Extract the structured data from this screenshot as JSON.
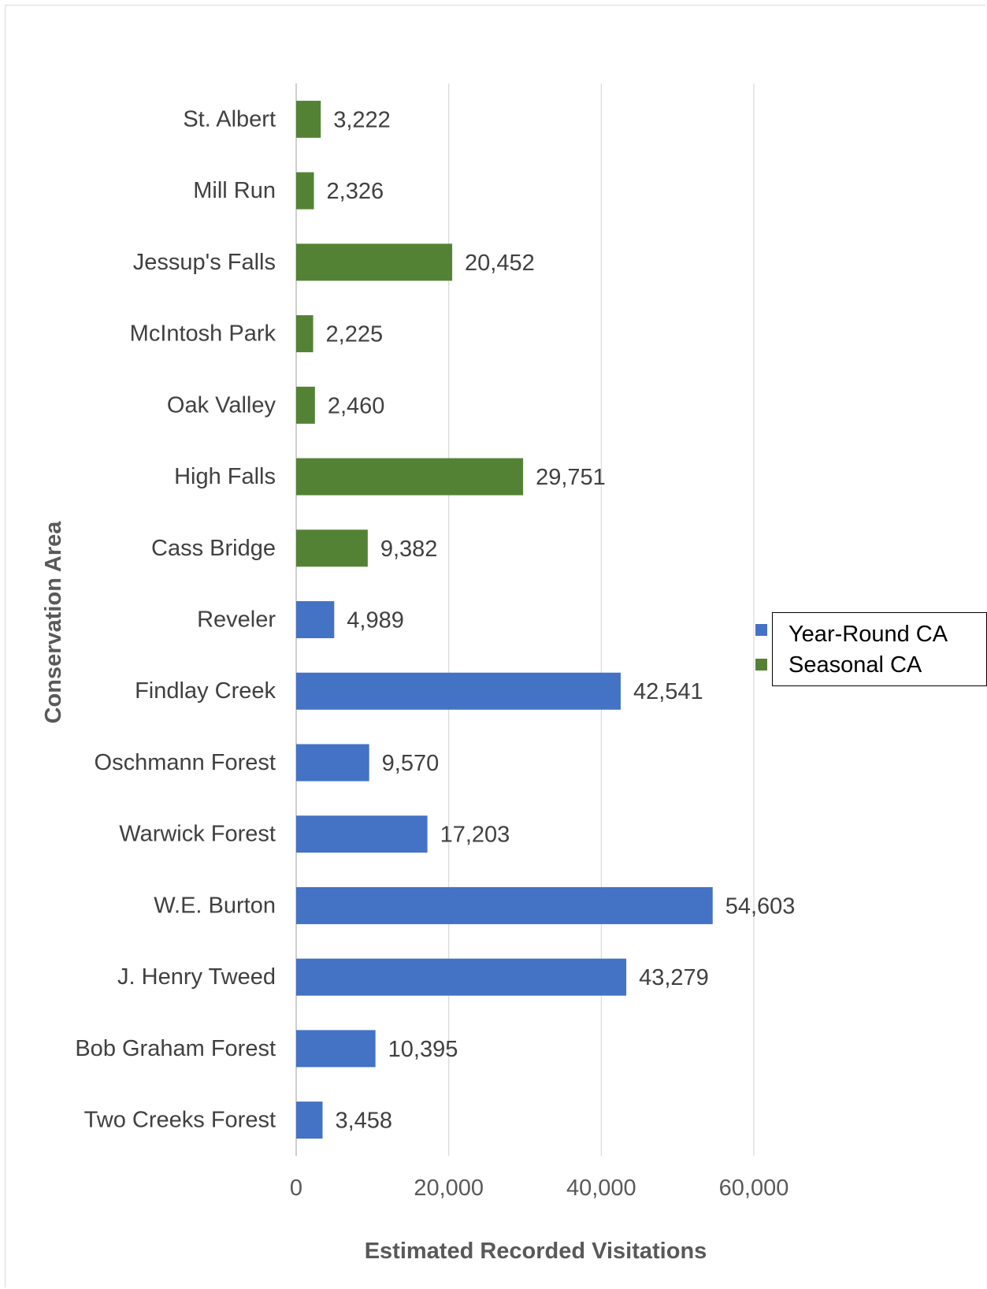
{
  "chart_data": {
    "type": "bar",
    "orientation": "horizontal",
    "xlabel": "Estimated Recorded Visitations",
    "ylabel": "Conservation Area",
    "xlim": [
      0,
      60000
    ],
    "xticks": [
      0,
      20000,
      40000,
      60000
    ],
    "xtick_labels": [
      "0",
      "20,000",
      "40,000",
      "60,000"
    ],
    "grid": "vertical",
    "legend": "right",
    "categories": [
      "St. Albert",
      "Mill Run",
      "Jessup's Falls",
      "McIntosh Park",
      "Oak Valley",
      "High Falls",
      "Cass Bridge",
      "Reveler",
      "Findlay Creek",
      "Oschmann Forest",
      "Warwick Forest",
      "W.E. Burton",
      "J. Henry Tweed",
      "Bob Graham Forest",
      "Two Creeks Forest"
    ],
    "values": [
      3222,
      2326,
      20452,
      2225,
      2460,
      29751,
      9382,
      4989,
      42541,
      9570,
      17203,
      54603,
      43279,
      10395,
      3458
    ],
    "value_labels": [
      "3,222",
      "2,326",
      "20,452",
      "2,225",
      "2,460",
      "29,751",
      "9,382",
      "4,989",
      "42,541",
      "9,570",
      "17,203",
      "54,603",
      "43,279",
      "10,395",
      "3,458"
    ],
    "group": [
      "Seasonal CA",
      "Seasonal CA",
      "Seasonal CA",
      "Seasonal CA",
      "Seasonal CA",
      "Seasonal CA",
      "Seasonal CA",
      "Year-Round CA",
      "Year-Round CA",
      "Year-Round CA",
      "Year-Round CA",
      "Year-Round CA",
      "Year-Round CA",
      "Year-Round CA",
      "Year-Round CA"
    ],
    "series": [
      {
        "name": "Year-Round CA",
        "color": "#4472c4"
      },
      {
        "name": "Seasonal CA",
        "color": "#548235"
      }
    ]
  }
}
